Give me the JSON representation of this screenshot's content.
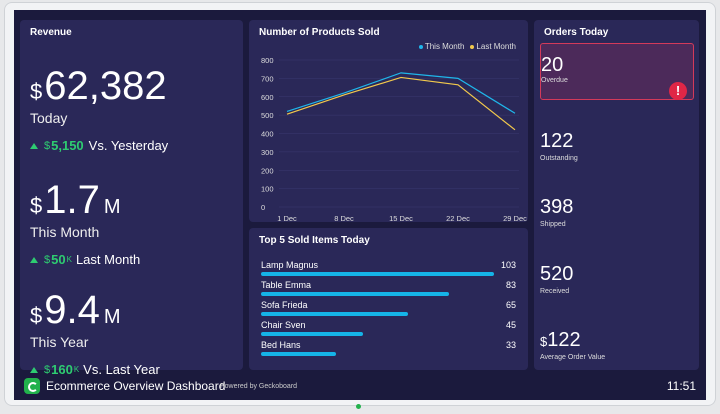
{
  "revenue": {
    "title": "Revenue",
    "today": {
      "currency": "$",
      "value": "62,382",
      "suffix": "",
      "label": "Today",
      "delta_currency": "$",
      "delta": "5,150",
      "delta_suffix": "",
      "delta_text": "Vs. Yesterday"
    },
    "month": {
      "currency": "$",
      "value": "1.7",
      "suffix": "M",
      "label": "This Month",
      "delta_currency": "$",
      "delta": "50",
      "delta_suffix": "K",
      "delta_text": "Last Month"
    },
    "year": {
      "currency": "$",
      "value": "9.4",
      "suffix": "M",
      "label": "This Year",
      "delta_currency": "$",
      "delta": "160",
      "delta_suffix": "K",
      "delta_text": "Vs. Last Year"
    },
    "delta_color": "#2ecc71"
  },
  "products_chart": {
    "title": "Number of Products Sold",
    "legend": {
      "this_month": "This Month",
      "last_month": "Last Month"
    }
  },
  "chart_data": {
    "type": "line",
    "title": "Number of Products Sold",
    "x": [
      "1 Dec",
      "8 Dec",
      "15 Dec",
      "22 Dec",
      "29 Dec"
    ],
    "ylim": [
      0,
      800
    ],
    "yticks": [
      0,
      100,
      200,
      300,
      400,
      500,
      600,
      700,
      800
    ],
    "series": [
      {
        "name": "This Month",
        "color": "#1fb6ea",
        "points": [
          [
            1,
            520
          ],
          [
            8,
            620
          ],
          [
            15,
            730
          ],
          [
            22,
            700
          ],
          [
            29,
            510
          ]
        ]
      },
      {
        "name": "Last Month",
        "color": "#f2c94c",
        "points": [
          [
            1,
            505
          ],
          [
            8,
            610
          ],
          [
            15,
            705
          ],
          [
            22,
            665
          ],
          [
            29,
            420
          ]
        ]
      }
    ],
    "grid": true,
    "legend_position": "top-right"
  },
  "top5": {
    "title": "Top 5 Sold Items Today",
    "max": 103,
    "items": [
      {
        "name": "Lamp Magnus",
        "value": "103",
        "fraction": 1.0
      },
      {
        "name": "Table Emma",
        "value": "83",
        "fraction": 0.806
      },
      {
        "name": "Sofa Frieda",
        "value": "65",
        "fraction": 0.631
      },
      {
        "name": "Chair Sven",
        "value": "45",
        "fraction": 0.437
      },
      {
        "name": "Bed Hans",
        "value": "33",
        "fraction": 0.32
      }
    ]
  },
  "orders": {
    "title": "Orders Today",
    "overdue": {
      "value": "20",
      "label": "Overdue",
      "alert": "!"
    },
    "outstanding": {
      "value": "122",
      "label": "Outstanding"
    },
    "shipped": {
      "value": "398",
      "label": "Shipped"
    },
    "received": {
      "value": "520",
      "label": "Received"
    },
    "avg": {
      "currency": "$",
      "value": "122",
      "label": "Average Order Value"
    }
  },
  "footer": {
    "title": "Ecommerce Overview Dashboard",
    "powered": "Powered by Geckoboard",
    "time": "11:51"
  }
}
